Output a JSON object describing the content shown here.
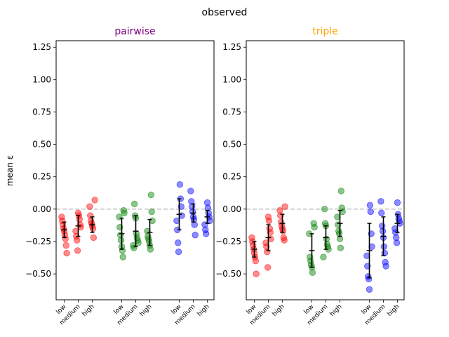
{
  "figure": {
    "suptitle": "observed",
    "ylabel": "mean ε"
  },
  "chart_data": [
    {
      "type": "scatter",
      "title": "pairwise",
      "title_color": "#800080",
      "ylabel": "mean ε",
      "ylim": [
        -0.7,
        1.3
      ],
      "yticks": [
        1.25,
        1.0,
        0.75,
        0.5,
        0.25,
        0.0,
        -0.25,
        -0.5
      ],
      "ytick_labels": [
        "1.25",
        "1.00",
        "0.75",
        "0.50",
        "0.25",
        "0.00",
        "−0.25",
        "−0.50"
      ],
      "reference_line": 0.0,
      "categories": [
        "low",
        "medium",
        "high",
        "low",
        "medium",
        "high",
        "low",
        "medium",
        "high"
      ],
      "groups": [
        {
          "color": "#ff0000",
          "levels": [
            {
              "label": "low",
              "points": [
                -0.06,
                -0.09,
                -0.12,
                -0.15,
                -0.17,
                -0.2,
                -0.23,
                -0.28,
                -0.34
              ],
              "mean": -0.16,
              "err": 0.06
            },
            {
              "label": "medium",
              "points": [
                -0.03,
                -0.05,
                -0.08,
                -0.12,
                -0.14,
                -0.17,
                -0.21,
                -0.24,
                -0.32
              ],
              "mean": -0.13,
              "err": 0.08
            },
            {
              "label": "high",
              "points": [
                0.07,
                0.02,
                -0.05,
                -0.09,
                -0.11,
                -0.13,
                -0.15,
                -0.22
              ],
              "mean": -0.12,
              "err": 0.06
            }
          ]
        },
        {
          "color": "#008000",
          "levels": [
            {
              "label": "low",
              "points": [
                -0.01,
                -0.03,
                -0.06,
                -0.14,
                -0.2,
                -0.24,
                -0.29,
                -0.32,
                -0.37
              ],
              "mean": -0.19,
              "err": 0.12
            },
            {
              "label": "medium",
              "points": [
                0.04,
                -0.05,
                -0.07,
                -0.19,
                -0.22,
                -0.24,
                -0.26,
                -0.28,
                -0.3
              ],
              "mean": -0.17,
              "err": 0.12
            },
            {
              "label": "high",
              "points": [
                0.11,
                -0.02,
                -0.09,
                -0.17,
                -0.21,
                -0.23,
                -0.25,
                -0.28,
                -0.31
              ],
              "mean": -0.18,
              "err": 0.1
            }
          ]
        },
        {
          "color": "#0000ff",
          "levels": [
            {
              "label": "low",
              "points": [
                0.19,
                0.08,
                0.02,
                -0.05,
                -0.09,
                -0.16,
                -0.26,
                -0.33
              ],
              "mean": -0.04,
              "err": 0.12
            },
            {
              "label": "medium",
              "points": [
                0.14,
                0.06,
                0.02,
                -0.02,
                -0.06,
                -0.08,
                -0.12,
                -0.2
              ],
              "mean": -0.03,
              "err": 0.07
            },
            {
              "label": "high",
              "points": [
                0.05,
                0.01,
                -0.03,
                -0.06,
                -0.09,
                -0.12,
                -0.16,
                -0.19
              ],
              "mean": -0.06,
              "err": 0.05
            }
          ]
        }
      ]
    },
    {
      "type": "scatter",
      "title": "triple",
      "title_color": "#ffa500",
      "ylim": [
        -0.7,
        1.3
      ],
      "yticks": [
        1.25,
        1.0,
        0.75,
        0.5,
        0.25,
        0.0,
        -0.25,
        -0.5
      ],
      "ytick_labels": [
        "1.25",
        "1.00",
        "0.75",
        "0.50",
        "0.25",
        "0.00",
        "−0.25",
        "−0.50"
      ],
      "reference_line": 0.0,
      "categories": [
        "low",
        "medium",
        "high",
        "low",
        "medium",
        "high",
        "low",
        "medium",
        "high"
      ],
      "groups": [
        {
          "color": "#ff0000",
          "levels": [
            {
              "label": "low",
              "points": [
                -0.22,
                -0.25,
                -0.28,
                -0.31,
                -0.34,
                -0.37,
                -0.4,
                -0.5
              ],
              "mean": -0.31,
              "err": 0.06
            },
            {
              "label": "medium",
              "points": [
                -0.06,
                -0.09,
                -0.15,
                -0.18,
                -0.23,
                -0.26,
                -0.29,
                -0.33,
                -0.45
              ],
              "mean": -0.22,
              "err": 0.1
            },
            {
              "label": "high",
              "points": [
                0.02,
                -0.01,
                -0.05,
                -0.1,
                -0.13,
                -0.15,
                -0.17,
                -0.22,
                -0.24
              ],
              "mean": -0.11,
              "err": 0.07
            }
          ]
        },
        {
          "color": "#008000",
          "levels": [
            {
              "label": "low",
              "points": [
                -0.11,
                -0.14,
                -0.19,
                -0.37,
                -0.4,
                -0.43,
                -0.45,
                -0.49
              ],
              "mean": -0.32,
              "err": 0.13
            },
            {
              "label": "medium",
              "points": [
                0.0,
                -0.11,
                -0.13,
                -0.23,
                -0.27,
                -0.29,
                -0.31,
                -0.37
              ],
              "mean": -0.22,
              "err": 0.09
            },
            {
              "label": "high",
              "points": [
                0.14,
                0.01,
                -0.02,
                -0.06,
                -0.12,
                -0.17,
                -0.19,
                -0.23,
                -0.3
              ],
              "mean": -0.11,
              "err": 0.1
            }
          ]
        },
        {
          "color": "#0000ff",
          "levels": [
            {
              "label": "low",
              "points": [
                0.03,
                -0.02,
                -0.19,
                -0.29,
                -0.36,
                -0.44,
                -0.52,
                -0.54,
                -0.62
              ],
              "mean": -0.32,
              "err": 0.21
            },
            {
              "label": "medium",
              "points": [
                0.06,
                -0.03,
                -0.13,
                -0.17,
                -0.22,
                -0.29,
                -0.34,
                -0.41,
                -0.44
              ],
              "mean": -0.21,
              "err": 0.15
            },
            {
              "label": "high",
              "points": [
                0.05,
                -0.04,
                -0.07,
                -0.09,
                -0.11,
                -0.15,
                -0.18,
                -0.22,
                -0.26
              ],
              "mean": -0.11,
              "err": 0.07
            }
          ]
        }
      ]
    }
  ]
}
